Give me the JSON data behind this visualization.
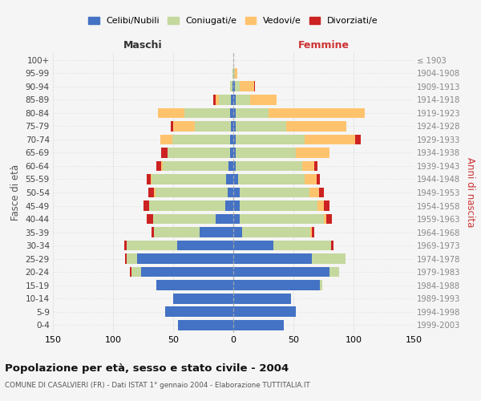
{
  "age_groups": [
    "0-4",
    "5-9",
    "10-14",
    "15-19",
    "20-24",
    "25-29",
    "30-34",
    "35-39",
    "40-44",
    "45-49",
    "50-54",
    "55-59",
    "60-64",
    "65-69",
    "70-74",
    "75-79",
    "80-84",
    "85-89",
    "90-94",
    "95-99",
    "100+"
  ],
  "birth_years": [
    "1999-2003",
    "1994-1998",
    "1989-1993",
    "1984-1988",
    "1979-1983",
    "1974-1978",
    "1969-1973",
    "1964-1968",
    "1959-1963",
    "1954-1958",
    "1949-1953",
    "1944-1948",
    "1939-1943",
    "1934-1938",
    "1929-1933",
    "1924-1928",
    "1919-1923",
    "1914-1918",
    "1909-1913",
    "1904-1908",
    "≤ 1903"
  ],
  "males": {
    "single": [
      46,
      57,
      50,
      64,
      77,
      80,
      47,
      28,
      15,
      7,
      5,
      6,
      4,
      3,
      3,
      2,
      3,
      2,
      1,
      0,
      0
    ],
    "married": [
      0,
      0,
      0,
      0,
      8,
      9,
      42,
      38,
      52,
      63,
      60,
      62,
      55,
      52,
      48,
      30,
      38,
      10,
      2,
      1,
      0
    ],
    "widowed": [
      0,
      0,
      0,
      0,
      0,
      0,
      0,
      0,
      0,
      0,
      1,
      1,
      1,
      0,
      10,
      18,
      22,
      3,
      0,
      0,
      0
    ],
    "divorced": [
      0,
      0,
      0,
      0,
      1,
      1,
      2,
      2,
      5,
      5,
      5,
      3,
      4,
      5,
      0,
      2,
      0,
      2,
      0,
      0,
      0
    ]
  },
  "females": {
    "single": [
      42,
      52,
      48,
      72,
      80,
      65,
      33,
      7,
      5,
      5,
      5,
      4,
      2,
      2,
      2,
      2,
      2,
      2,
      1,
      0,
      0
    ],
    "married": [
      0,
      0,
      0,
      2,
      8,
      28,
      48,
      57,
      70,
      65,
      58,
      55,
      55,
      50,
      57,
      42,
      27,
      12,
      4,
      1,
      0
    ],
    "widowed": [
      0,
      0,
      0,
      0,
      0,
      0,
      0,
      1,
      2,
      5,
      8,
      10,
      10,
      28,
      42,
      50,
      80,
      22,
      12,
      2,
      0
    ],
    "divorced": [
      0,
      0,
      0,
      0,
      0,
      0,
      2,
      2,
      5,
      5,
      4,
      3,
      3,
      0,
      5,
      0,
      0,
      0,
      1,
      0,
      0
    ]
  },
  "colors": {
    "single": "#4472c4",
    "married": "#c5d89e",
    "widowed": "#ffc36e",
    "divorced": "#cc2222"
  },
  "title": "Popolazione per età, sesso e stato civile - 2004",
  "subtitle": "COMUNE DI CASALVIERI (FR) - Dati ISTAT 1° gennaio 2004 - Elaborazione TUTTITALIA.IT",
  "xlabel_left": "Maschi",
  "xlabel_right": "Femmine",
  "ylabel_left": "Fasce di età",
  "ylabel_right": "Anni di nascita",
  "xlim": 150,
  "legend_labels": [
    "Celibi/Nubili",
    "Coniugati/e",
    "Vedovi/e",
    "Divorziati/e"
  ],
  "bg_color": "#f5f5f5",
  "grid_color": "#cccccc"
}
